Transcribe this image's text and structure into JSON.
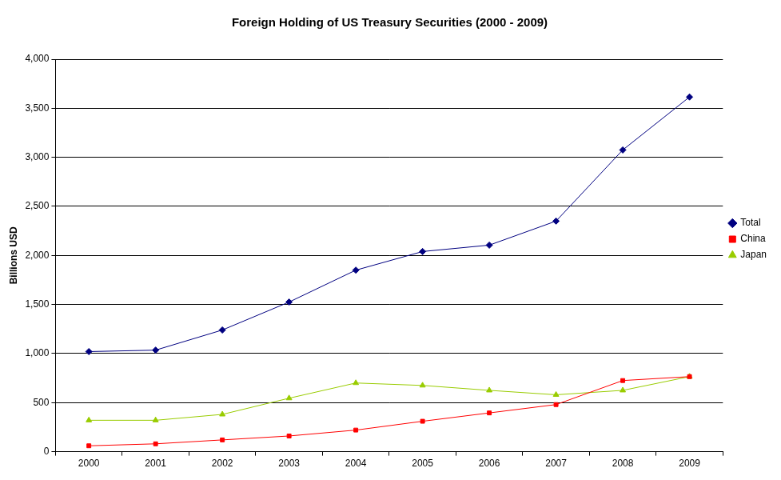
{
  "chart_data": {
    "type": "line",
    "title": "Foreign Holding of US Treasury Securities (2000 - 2009)",
    "y_label": "Billions USD",
    "categories": [
      "2000",
      "2001",
      "2002",
      "2003",
      "2004",
      "2005",
      "2006",
      "2007",
      "2008",
      "2009"
    ],
    "series": [
      {
        "name": "Total",
        "color": "#000080",
        "marker": "diamond",
        "line_style": "solid",
        "values": [
          1020,
          1035,
          1240,
          1525,
          1850,
          2040,
          2105,
          2350,
          3075,
          3615
        ]
      },
      {
        "name": "China",
        "color": "#ff0000",
        "marker": "square",
        "line_style": "solid",
        "values": [
          60,
          80,
          120,
          160,
          220,
          310,
          395,
          480,
          725,
          765
        ]
      },
      {
        "name": "Japan",
        "color": "#99cc00",
        "marker": "triangle",
        "line_style": "solid",
        "values": [
          320,
          320,
          380,
          545,
          700,
          675,
          625,
          580,
          625,
          765
        ]
      }
    ],
    "ylim": [
      0,
      4000
    ],
    "yticks": [
      0,
      500,
      {
        "value": 1000,
        "label": "1,000"
      },
      {
        "value": 1500,
        "label": "1,500"
      },
      {
        "value": 2000,
        "label": "2,000"
      },
      {
        "value": 2500,
        "label": "2,500"
      },
      {
        "value": 3000,
        "label": "3,000"
      },
      {
        "value": 3500,
        "label": "3,500"
      },
      {
        "value": 4000,
        "label": "4,000"
      }
    ],
    "grid": "y",
    "legend": "right"
  }
}
